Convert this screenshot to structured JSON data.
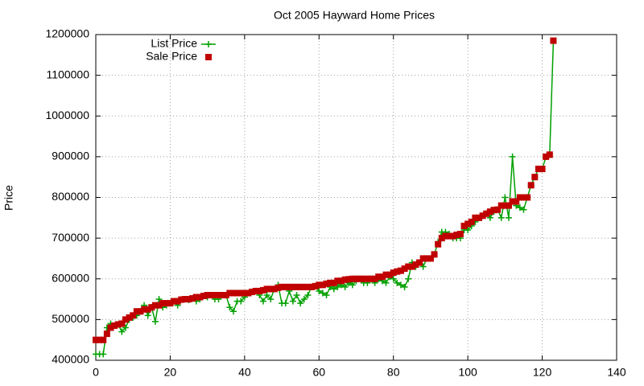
{
  "chart_data": {
    "type": "line",
    "title": "Oct 2005 Hayward Home Prices",
    "y_label": "Price",
    "x": [
      0,
      1,
      2,
      3,
      4,
      5,
      6,
      7,
      8,
      9,
      10,
      11,
      12,
      13,
      14,
      15,
      16,
      17,
      18,
      19,
      20,
      21,
      22,
      23,
      24,
      25,
      26,
      27,
      28,
      29,
      30,
      31,
      32,
      33,
      34,
      35,
      36,
      37,
      38,
      39,
      40,
      41,
      42,
      43,
      44,
      45,
      46,
      47,
      48,
      49,
      50,
      51,
      52,
      53,
      54,
      55,
      56,
      57,
      58,
      59,
      60,
      61,
      62,
      63,
      64,
      65,
      66,
      67,
      68,
      69,
      70,
      71,
      72,
      73,
      74,
      75,
      76,
      77,
      78,
      79,
      80,
      81,
      82,
      83,
      84,
      85,
      86,
      87,
      88,
      89,
      90,
      91,
      92,
      93,
      94,
      95,
      96,
      97,
      98,
      99,
      100,
      101,
      102,
      103,
      104,
      105,
      106,
      107,
      108,
      109,
      110,
      111,
      112,
      113,
      114,
      115,
      116,
      117,
      118,
      119,
      120,
      121,
      122,
      123
    ],
    "series": [
      {
        "name": "List Price",
        "color": "#00a000",
        "style": "linespoints",
        "values": [
          415000,
          415000,
          415000,
          480000,
          490000,
          485000,
          488000,
          470000,
          480000,
          500000,
          505000,
          510000,
          520000,
          535000,
          510000,
          530000,
          495000,
          550000,
          530000,
          535000,
          540000,
          545000,
          535000,
          549000,
          550000,
          548000,
          552000,
          545000,
          550000,
          558000,
          555000,
          560000,
          550000,
          550000,
          560000,
          560000,
          530000,
          520000,
          545000,
          545000,
          555000,
          565000,
          568000,
          570000,
          560000,
          545000,
          560000,
          550000,
          575000,
          585000,
          540000,
          540000,
          570000,
          545000,
          560000,
          540000,
          550000,
          560000,
          580000,
          582000,
          570000,
          565000,
          560000,
          580000,
          575000,
          580000,
          585000,
          580000,
          590000,
          585000,
          595000,
          600000,
          590000,
          590000,
          600000,
          590000,
          600000,
          595000,
          590000,
          605000,
          600000,
          590000,
          585000,
          580000,
          600000,
          640000,
          630000,
          640000,
          630000,
          650000,
          650000,
          660000,
          690000,
          715000,
          715000,
          710000,
          700000,
          700000,
          700000,
          720000,
          720000,
          730000,
          740000,
          750000,
          755000,
          760000,
          750000,
          765000,
          770000,
          750000,
          800000,
          750000,
          900000,
          780000,
          775000,
          770000,
          800000,
          830000,
          850000,
          870000,
          870000,
          900000,
          905000,
          1185000
        ]
      },
      {
        "name": "Sale Price",
        "color": "#c00000",
        "style": "points",
        "values": [
          450000,
          450000,
          450000,
          465000,
          480000,
          485000,
          488000,
          490000,
          500000,
          505000,
          510000,
          520000,
          520000,
          525000,
          525000,
          530000,
          535000,
          535000,
          540000,
          540000,
          540000,
          545000,
          545000,
          549000,
          550000,
          550000,
          552000,
          555000,
          555000,
          558000,
          560000,
          560000,
          560000,
          560000,
          560000,
          560000,
          565000,
          565000,
          565000,
          565000,
          565000,
          565000,
          568000,
          570000,
          570000,
          572000,
          575000,
          575000,
          575000,
          578000,
          580000,
          580000,
          580000,
          580000,
          580000,
          580000,
          580000,
          580000,
          580000,
          582000,
          585000,
          585000,
          588000,
          590000,
          590000,
          595000,
          595000,
          598000,
          599000,
          600000,
          600000,
          600000,
          600000,
          600000,
          600000,
          600000,
          605000,
          605000,
          610000,
          610000,
          615000,
          618000,
          620000,
          625000,
          630000,
          630000,
          635000,
          640000,
          650000,
          650000,
          650000,
          660000,
          685000,
          700000,
          705000,
          705000,
          705000,
          708000,
          710000,
          730000,
          735000,
          740000,
          750000,
          750000,
          755000,
          760000,
          765000,
          769000,
          770000,
          780000,
          780000,
          780000,
          790000,
          790000,
          800000,
          800000,
          800000,
          830000,
          850000,
          870000,
          870000,
          900000,
          905000,
          1185000
        ]
      }
    ],
    "xlim": [
      0,
      140
    ],
    "xticks": [
      0,
      20,
      40,
      60,
      80,
      100,
      120,
      140
    ],
    "ylim": [
      400000,
      1200000
    ],
    "yticks": [
      400000,
      500000,
      600000,
      700000,
      800000,
      900000,
      1000000,
      1100000,
      1200000
    ],
    "grid": true,
    "legend": "top-left"
  }
}
